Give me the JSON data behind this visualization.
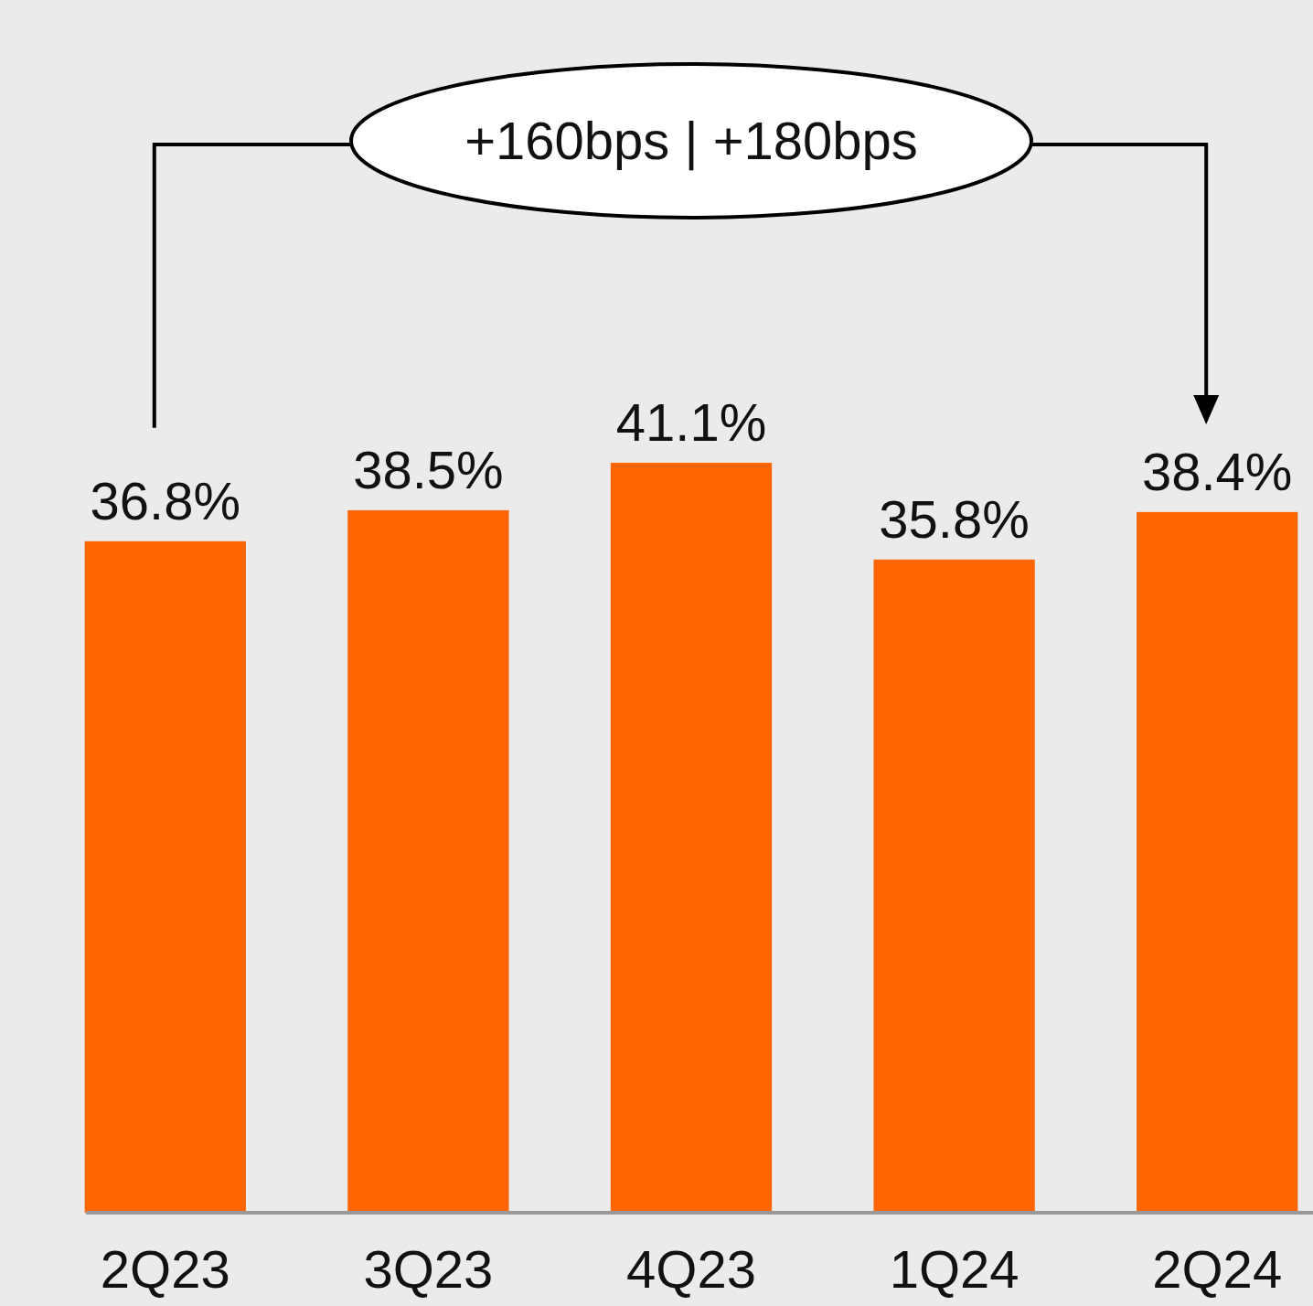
{
  "chart_data": {
    "type": "bar",
    "categories": [
      "2Q23",
      "3Q23",
      "4Q23",
      "1Q24",
      "2Q24"
    ],
    "values": [
      36.8,
      38.5,
      41.1,
      35.8,
      38.4
    ],
    "color": "#ff6600",
    "data_labels": true,
    "value_labels": [
      "36.8%",
      "38.5%",
      "41.1%",
      "35.8%",
      "38.4%"
    ],
    "annotations": [
      "+160bps | +180bps"
    ]
  }
}
